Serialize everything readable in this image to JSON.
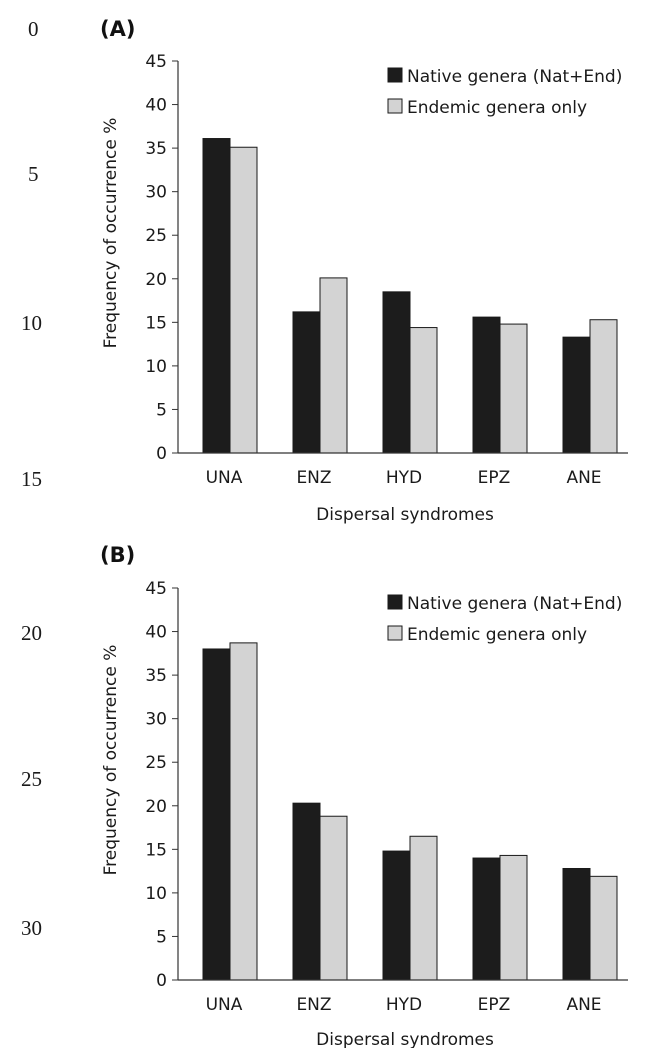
{
  "line_numbers": [
    "0",
    "5",
    "10",
    "15",
    "20",
    "25",
    "30"
  ],
  "colors": {
    "native": "#1c1c1c",
    "endemic": "#d3d3d3",
    "bar_edge": "#1a1a1a",
    "axis": "#333333"
  },
  "chart_data": [
    {
      "type": "bar",
      "panel_label": "(A)",
      "categories": [
        "UNA",
        "ENZ",
        "HYD",
        "EPZ",
        "ANE"
      ],
      "series": [
        {
          "name": "Native genera (Nat+End)",
          "values": [
            36.1,
            16.2,
            18.5,
            15.6,
            13.3
          ]
        },
        {
          "name": "Endemic genera only",
          "values": [
            35.1,
            20.1,
            14.4,
            14.8,
            15.3
          ]
        }
      ],
      "xlabel": "Dispersal syndromes",
      "ylabel": "Frequency of occurrence %",
      "ylim": [
        0,
        45
      ],
      "yticks": [
        "0",
        "5",
        "10",
        "15",
        "20",
        "25",
        "30",
        "35",
        "40",
        "45"
      ],
      "legend_position": "top-right",
      "grid": false
    },
    {
      "type": "bar",
      "panel_label": "(B)",
      "categories": [
        "UNA",
        "ENZ",
        "HYD",
        "EPZ",
        "ANE"
      ],
      "series": [
        {
          "name": "Native genera (Nat+End)",
          "values": [
            38.0,
            20.3,
            14.8,
            14.0,
            12.8
          ]
        },
        {
          "name": "Endemic genera only",
          "values": [
            38.7,
            18.8,
            16.5,
            14.3,
            11.9
          ]
        }
      ],
      "xlabel": "Dispersal syndromes",
      "ylabel": "Frequency of occurrence %",
      "ylim": [
        0,
        45
      ],
      "yticks": [
        "0",
        "5",
        "10",
        "15",
        "20",
        "25",
        "30",
        "35",
        "40",
        "45"
      ],
      "legend_position": "top-right",
      "grid": false
    }
  ]
}
